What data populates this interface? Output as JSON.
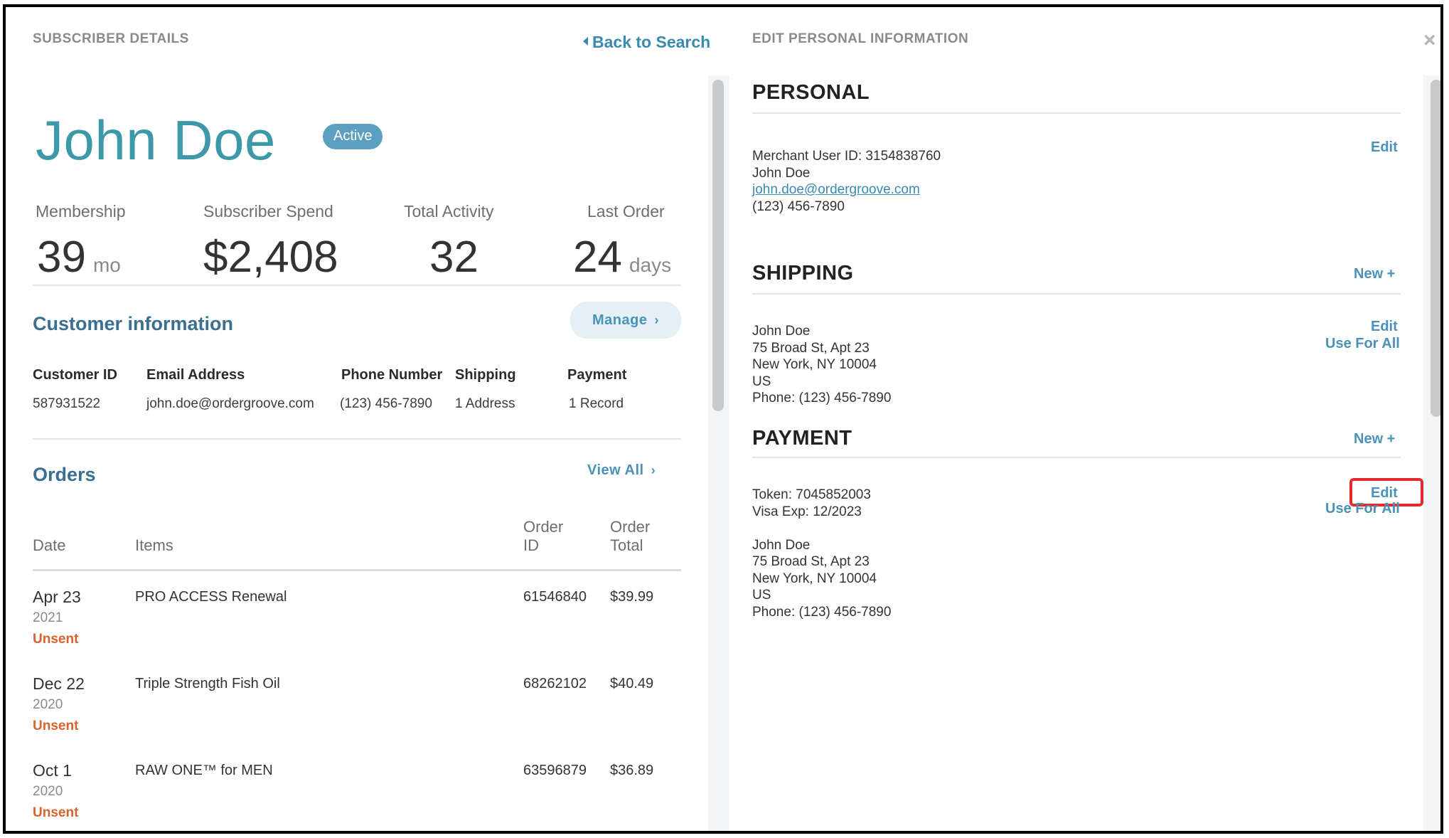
{
  "left": {
    "section_title": "SUBSCRIBER DETAILS",
    "back_link": "Back to Search",
    "subscriber_name": "John Doe",
    "status_badge": "Active",
    "stats": [
      {
        "label": "Membership",
        "value": "39",
        "unit": "mo"
      },
      {
        "label": "Subscriber Spend",
        "value": "$2,408",
        "unit": ""
      },
      {
        "label": "Total Activity",
        "value": "32",
        "unit": ""
      },
      {
        "label": "Last Order",
        "value": "24",
        "unit": "days"
      }
    ],
    "customer_info": {
      "heading": "Customer information",
      "manage_label": "Manage",
      "columns": [
        "Customer ID",
        "Email Address",
        "Phone Number",
        "Shipping",
        "Payment"
      ],
      "values": [
        "587931522",
        "john.doe@ordergroove.com",
        "(123) 456-7890",
        "1 Address",
        "1 Record"
      ]
    },
    "orders": {
      "heading": "Orders",
      "view_all_label": "View All",
      "columns": {
        "date": "Date",
        "items": "Items",
        "order_id_1": "Order",
        "order_id_2": "ID",
        "order_total_1": "Order",
        "order_total_2": "Total"
      },
      "rows": [
        {
          "date": "Apr 23",
          "year": "2021",
          "status": "Unsent",
          "item": "PRO ACCESS Renewal",
          "order_id": "61546840",
          "total": "$39.99"
        },
        {
          "date": "Dec 22",
          "year": "2020",
          "status": "Unsent",
          "item": "Triple Strength Fish Oil",
          "order_id": "68262102",
          "total": "$40.49"
        },
        {
          "date": "Oct 1",
          "year": "2020",
          "status": "Unsent",
          "item": "RAW ONE™ for MEN",
          "order_id": "63596879",
          "total": "$36.89"
        }
      ]
    }
  },
  "right": {
    "section_title": "EDIT PERSONAL INFORMATION",
    "close_symbol": "×",
    "personal": {
      "heading": "PERSONAL",
      "edit_label": "Edit",
      "merchant_user_id": "Merchant User ID: 3154838760",
      "name": "John Doe",
      "email": "john.doe@ordergroove.com",
      "phone": "(123) 456-7890"
    },
    "shipping": {
      "heading": "SHIPPING",
      "new_label": "New +",
      "edit_label": "Edit",
      "use_for_all_label": "Use For All",
      "name": "John Doe",
      "street": "75 Broad St, Apt 23",
      "city": "New York, NY 10004",
      "country": "US",
      "phone": "Phone: (123) 456-7890"
    },
    "payment": {
      "heading": "PAYMENT",
      "new_label": "New +",
      "edit_label": "Edit",
      "use_for_all_label": "Use For All",
      "token": "Token: 7045852003",
      "card": "Visa Exp: 12/2023",
      "name": "John Doe",
      "street": "75 Broad St, Apt 23",
      "city": "New York, NY 10004",
      "country": "US",
      "phone": "Phone: (123) 456-7890"
    }
  },
  "colors": {
    "accent": "#4a92b8",
    "name_teal": "#3d98a9",
    "heading_blue": "#3a6f90",
    "status_unsent": "#d9622b",
    "highlight": "#e32b2b"
  }
}
